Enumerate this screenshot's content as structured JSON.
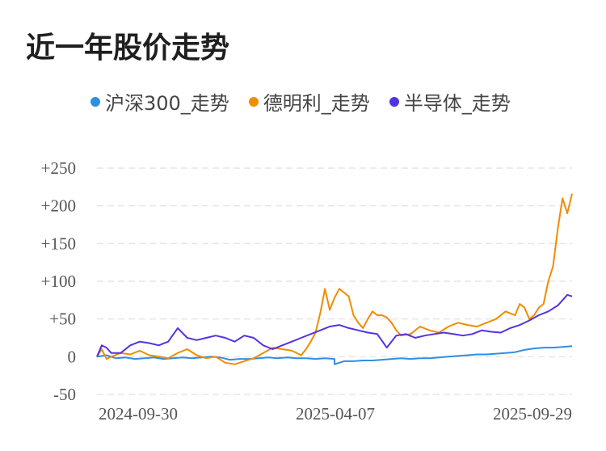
{
  "title": "近一年股价走势",
  "chart_data": {
    "type": "line",
    "title": "近一年股价走势",
    "xlabel": "",
    "ylabel": "",
    "ylim": [
      -50,
      250
    ],
    "yticks": [
      250,
      200,
      150,
      100,
      50,
      0,
      -50
    ],
    "ytick_labels": [
      "+250",
      "+200",
      "+150",
      "+100",
      "+50",
      "0",
      "-50"
    ],
    "x_ticks": [
      "2024-09-30",
      "2025-04-07",
      "2025-09-29"
    ],
    "x_tick_positions": [
      0.03,
      0.51,
      0.98
    ],
    "grid": true,
    "legend_position": "top",
    "series": [
      {
        "name": "沪深300_走势",
        "color": "#2f8ee5",
        "x": [
          0,
          0.02,
          0.04,
          0.06,
          0.08,
          0.1,
          0.12,
          0.14,
          0.16,
          0.18,
          0.2,
          0.22,
          0.24,
          0.26,
          0.28,
          0.3,
          0.32,
          0.34,
          0.36,
          0.38,
          0.4,
          0.42,
          0.44,
          0.46,
          0.48,
          0.5,
          0.5,
          0.52,
          0.54,
          0.56,
          0.58,
          0.6,
          0.62,
          0.64,
          0.66,
          0.68,
          0.7,
          0.72,
          0.74,
          0.76,
          0.78,
          0.8,
          0.82,
          0.84,
          0.86,
          0.88,
          0.9,
          0.92,
          0.94,
          0.96,
          0.98,
          1.0
        ],
        "values": [
          0,
          2,
          -2,
          -1,
          -3,
          -2,
          -1,
          -3,
          -2,
          -1,
          -2,
          -1,
          0,
          -1,
          -4,
          -3,
          -3,
          -2,
          -1,
          -2,
          -1,
          -2,
          -2,
          -3,
          -2,
          -3,
          -10,
          -6,
          -6,
          -5,
          -5,
          -4,
          -3,
          -2,
          -3,
          -2,
          -2,
          -1,
          0,
          1,
          2,
          3,
          3,
          4,
          5,
          6,
          9,
          11,
          12,
          12,
          13,
          14
        ]
      },
      {
        "name": "德明利_走势",
        "color": "#f08c00",
        "x": [
          0,
          0.01,
          0.02,
          0.03,
          0.05,
          0.07,
          0.09,
          0.11,
          0.13,
          0.15,
          0.17,
          0.19,
          0.21,
          0.23,
          0.25,
          0.27,
          0.29,
          0.31,
          0.33,
          0.35,
          0.37,
          0.39,
          0.41,
          0.43,
          0.44,
          0.45,
          0.46,
          0.47,
          0.48,
          0.49,
          0.5,
          0.51,
          0.52,
          0.53,
          0.54,
          0.55,
          0.56,
          0.57,
          0.58,
          0.59,
          0.6,
          0.61,
          0.62,
          0.63,
          0.64,
          0.66,
          0.68,
          0.7,
          0.72,
          0.74,
          0.76,
          0.78,
          0.8,
          0.82,
          0.84,
          0.86,
          0.88,
          0.89,
          0.9,
          0.91,
          0.92,
          0.93,
          0.94,
          0.95,
          0.96,
          0.97,
          0.98,
          0.99,
          1.0
        ],
        "values": [
          0,
          10,
          -3,
          0,
          5,
          3,
          8,
          2,
          0,
          -2,
          5,
          10,
          2,
          -2,
          0,
          -8,
          -10,
          -6,
          -2,
          5,
          12,
          10,
          8,
          2,
          10,
          20,
          32,
          58,
          90,
          62,
          78,
          90,
          85,
          80,
          55,
          45,
          38,
          50,
          60,
          55,
          55,
          52,
          45,
          35,
          28,
          30,
          40,
          35,
          32,
          40,
          45,
          42,
          40,
          45,
          50,
          60,
          55,
          70,
          65,
          50,
          55,
          65,
          70,
          100,
          120,
          170,
          210,
          190,
          216
        ]
      },
      {
        "name": "半导体_走势",
        "color": "#5433e0",
        "x": [
          0,
          0.01,
          0.02,
          0.03,
          0.05,
          0.07,
          0.09,
          0.11,
          0.13,
          0.15,
          0.17,
          0.19,
          0.21,
          0.23,
          0.25,
          0.27,
          0.29,
          0.31,
          0.33,
          0.35,
          0.37,
          0.39,
          0.41,
          0.43,
          0.45,
          0.47,
          0.49,
          0.51,
          0.53,
          0.55,
          0.57,
          0.59,
          0.61,
          0.63,
          0.65,
          0.67,
          0.69,
          0.71,
          0.73,
          0.75,
          0.77,
          0.79,
          0.81,
          0.83,
          0.85,
          0.87,
          0.89,
          0.91,
          0.93,
          0.95,
          0.97,
          0.99,
          1.0
        ],
        "values": [
          0,
          15,
          12,
          5,
          5,
          15,
          20,
          18,
          15,
          20,
          38,
          25,
          22,
          25,
          28,
          25,
          20,
          28,
          25,
          15,
          10,
          15,
          20,
          25,
          30,
          35,
          40,
          42,
          38,
          35,
          32,
          30,
          12,
          28,
          30,
          25,
          28,
          30,
          32,
          30,
          28,
          30,
          35,
          33,
          32,
          38,
          42,
          48,
          55,
          60,
          68,
          82,
          80
        ]
      }
    ]
  }
}
